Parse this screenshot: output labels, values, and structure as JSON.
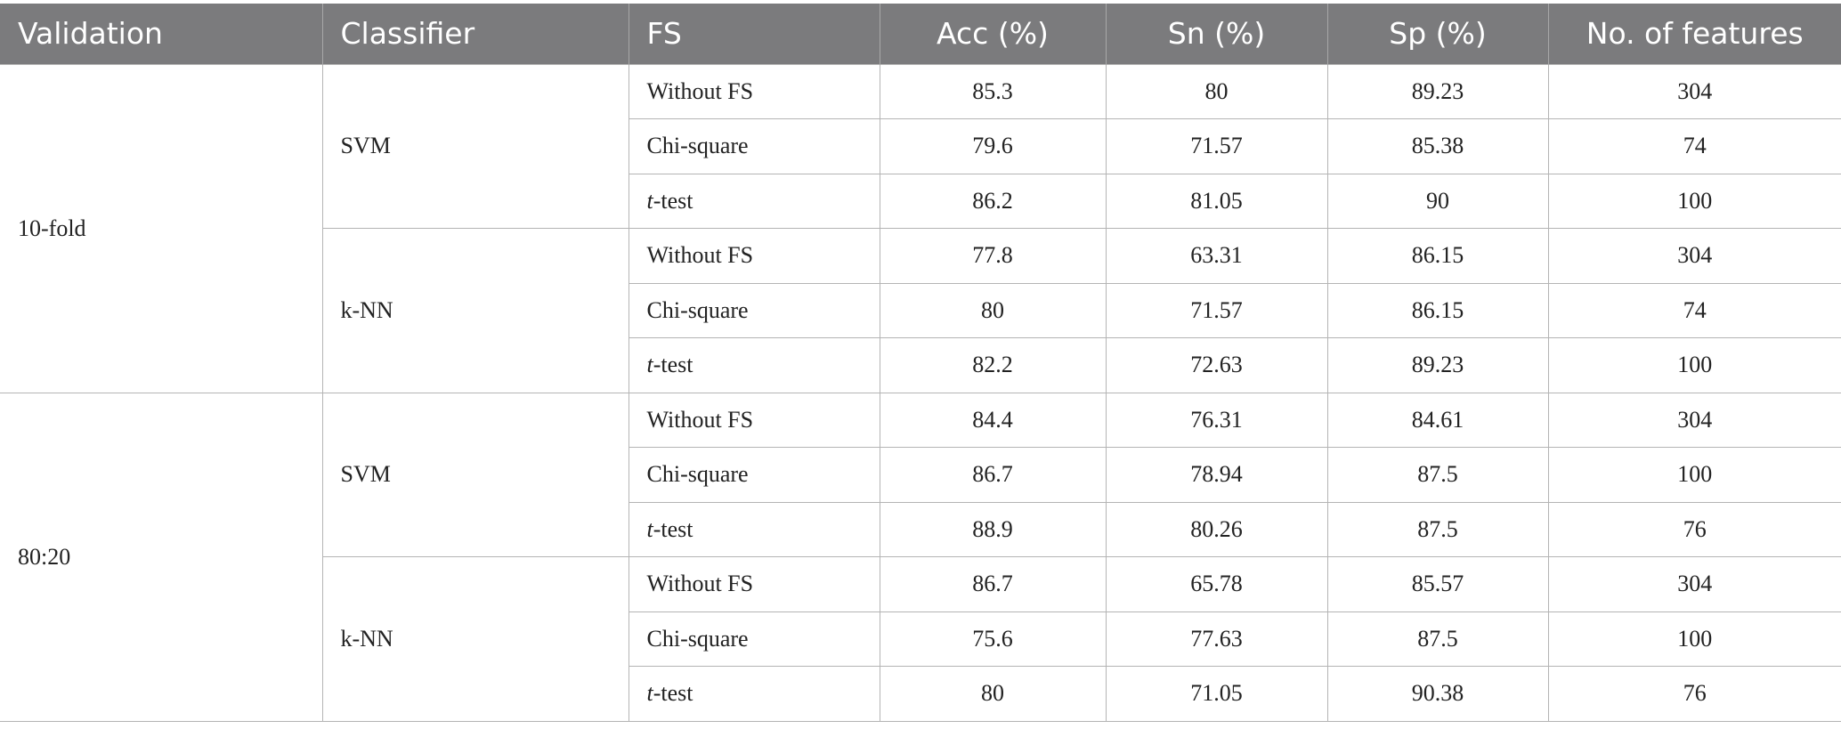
{
  "headers": {
    "validation": "Validation",
    "classifier": "Classifier",
    "fs": "FS",
    "acc": "Acc (%)",
    "sn": "Sn (%)",
    "sp": "Sp (%)",
    "nof": "No. of features"
  },
  "groups": [
    {
      "validation": "10-fold",
      "classifiers": [
        {
          "name": "SVM",
          "rows": [
            {
              "fs_prefix": "",
              "fs_italic": "",
              "fs_suffix": "Without FS",
              "acc": "85.3",
              "sn": "80",
              "sp": "89.23",
              "nof": "304"
            },
            {
              "fs_prefix": "",
              "fs_italic": "",
              "fs_suffix": "Chi-square",
              "acc": "79.6",
              "sn": "71.57",
              "sp": "85.38",
              "nof": "74"
            },
            {
              "fs_prefix": "",
              "fs_italic": "t",
              "fs_suffix": "-test",
              "acc": "86.2",
              "sn": "81.05",
              "sp": "90",
              "nof": "100"
            }
          ]
        },
        {
          "name": "k-NN",
          "rows": [
            {
              "fs_prefix": "",
              "fs_italic": "",
              "fs_suffix": "Without FS",
              "acc": "77.8",
              "sn": "63.31",
              "sp": "86.15",
              "nof": "304"
            },
            {
              "fs_prefix": "",
              "fs_italic": "",
              "fs_suffix": "Chi-square",
              "acc": "80",
              "sn": "71.57",
              "sp": "86.15",
              "nof": "74"
            },
            {
              "fs_prefix": "",
              "fs_italic": "t",
              "fs_suffix": "-test",
              "acc": "82.2",
              "sn": "72.63",
              "sp": "89.23",
              "nof": "100"
            }
          ]
        }
      ]
    },
    {
      "validation": "80:20",
      "classifiers": [
        {
          "name": "SVM",
          "rows": [
            {
              "fs_prefix": "",
              "fs_italic": "",
              "fs_suffix": "Without FS",
              "acc": "84.4",
              "sn": "76.31",
              "sp": "84.61",
              "nof": "304"
            },
            {
              "fs_prefix": "",
              "fs_italic": "",
              "fs_suffix": "Chi-square",
              "acc": "86.7",
              "sn": "78.94",
              "sp": "87.5",
              "nof": "100"
            },
            {
              "fs_prefix": "",
              "fs_italic": "t",
              "fs_suffix": "-test",
              "acc": "88.9",
              "sn": "80.26",
              "sp": "87.5",
              "nof": "76"
            }
          ]
        },
        {
          "name": "k-NN",
          "rows": [
            {
              "fs_prefix": "",
              "fs_italic": "",
              "fs_suffix": "Without FS",
              "acc": "86.7",
              "sn": "65.78",
              "sp": "85.57",
              "nof": "304"
            },
            {
              "fs_prefix": "",
              "fs_italic": "",
              "fs_suffix": "Chi-square",
              "acc": "75.6",
              "sn": "77.63",
              "sp": "87.5",
              "nof": "100"
            },
            {
              "fs_prefix": "",
              "fs_italic": "t",
              "fs_suffix": "-test",
              "acc": "80",
              "sn": "71.05",
              "sp": "90.38",
              "nof": "76"
            }
          ]
        }
      ]
    }
  ]
}
